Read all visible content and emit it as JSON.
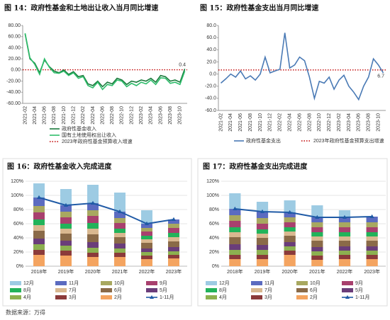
{
  "chart_data": [
    {
      "type": "line",
      "title": "图 14：政府性基金和土地出让收入当月同比增速",
      "categories": [
        "2021-02",
        null,
        "2021-04",
        null,
        "2021-06",
        null,
        "2021-08",
        null,
        "2021-10",
        null,
        "2021-12",
        null,
        "2022-02",
        null,
        "2022-04",
        null,
        "2022-06",
        null,
        "2022-08",
        null,
        "2022-10",
        null,
        "2022-12",
        null,
        "2023-02",
        null,
        "2023-04",
        null,
        "2023-06",
        null,
        "2023-08",
        null,
        "2023-10",
        null
      ],
      "series": [
        {
          "name": "政府性基金收入",
          "color": "#1a7a3c",
          "values": [
            65,
            20,
            12,
            -5,
            18,
            6,
            -2,
            -5,
            0,
            -8,
            -3,
            -12,
            -10,
            -25,
            -28,
            -20,
            -30,
            -22,
            -25,
            -15,
            -18,
            -26,
            -20,
            -22,
            -18,
            -20,
            -15,
            -22,
            -10,
            -12,
            -20,
            -18,
            -22,
            2
          ]
        },
        {
          "name": "国有土地使用权出让收入",
          "color": "#2ebd6b",
          "values": [
            66,
            22,
            10,
            -8,
            20,
            5,
            -5,
            -6,
            -2,
            -10,
            -5,
            -15,
            -12,
            -28,
            -32,
            -22,
            -35,
            -26,
            -28,
            -18,
            -20,
            -30,
            -24,
            -28,
            -22,
            -25,
            -18,
            -26,
            -14,
            -15,
            -24,
            -22,
            -26,
            -2
          ]
        }
      ],
      "reference": {
        "name": "2023年政府性基金预算收入增速",
        "color": "#c00000",
        "value": 0.4
      },
      "ylim": [
        -60,
        80
      ],
      "yticks": [
        {
          "value": -60,
          "label": "-60.00"
        },
        {
          "value": -40,
          "label": "-40.00"
        },
        {
          "value": -20,
          "label": "-20.00"
        },
        {
          "value": 0,
          "label": "0.00"
        },
        {
          "value": 20,
          "label": "20.00"
        },
        {
          "value": 40,
          "label": "40.00"
        },
        {
          "value": 60,
          "label": "60.00"
        },
        {
          "value": 80,
          "label": "80.00"
        }
      ]
    },
    {
      "type": "line",
      "title": "图 15：政府性基金支出当月同比增速",
      "categories": [
        "2021-02",
        null,
        "2021-04",
        null,
        "2021-06",
        null,
        "2021-08",
        null,
        "2021-10",
        null,
        "2021-12",
        null,
        "2022-02",
        null,
        "2022-04",
        null,
        "2022-06",
        null,
        "2022-08",
        null,
        "2022-10",
        null,
        "2022-12",
        null,
        "2023-02",
        null,
        "2023-04",
        null,
        "2023-06",
        null,
        "2023-08",
        null,
        "2023-10",
        null
      ],
      "series": [
        {
          "name": "政府性基金支出",
          "color": "#4a7ab5",
          "values": [
            -15,
            -8,
            0,
            -5,
            5,
            -8,
            -3,
            -10,
            0,
            28,
            2,
            5,
            8,
            68,
            10,
            15,
            28,
            22,
            -5,
            -40,
            -12,
            -15,
            -5,
            -25,
            -10,
            -2,
            -20,
            -30,
            -42,
            -20,
            -5,
            25,
            15,
            2
          ]
        }
      ],
      "reference": {
        "name": "2023年政府性基金预算支出增速",
        "color": "#c00000",
        "value": 6.7
      },
      "ylim": [
        -60,
        80
      ],
      "yticks": [
        {
          "value": -60,
          "label": "-60.0"
        },
        {
          "value": -40,
          "label": "-40.0"
        },
        {
          "value": -20,
          "label": "-20.0"
        },
        {
          "value": 0,
          "label": "0.0"
        },
        {
          "value": 20,
          "label": "20.0"
        },
        {
          "value": 40,
          "label": "40.0"
        },
        {
          "value": 60,
          "label": "60.0"
        },
        {
          "value": 80,
          "label": "80.0"
        }
      ]
    },
    {
      "type": "stacked-bar",
      "title": "图 16：政府性基金收入完成进度",
      "categories": [
        "2018年",
        "2019年",
        "2020年",
        "2021年",
        "2022年",
        "2023年"
      ],
      "series": [
        {
          "name": "12月",
          "color": "#9dcbe3",
          "values": [
            20,
            23,
            26,
            27,
            19,
            null
          ]
        },
        {
          "name": "11月",
          "color": "#5b6bc0",
          "values": [
            12,
            9,
            10,
            9,
            6,
            6
          ]
        },
        {
          "name": "10月",
          "color": "#a8a860",
          "values": [
            9,
            8,
            8,
            7,
            5,
            6
          ]
        },
        {
          "name": "9月",
          "color": "#a8406e",
          "values": [
            10,
            9,
            10,
            8,
            6,
            7
          ]
        },
        {
          "name": "8月",
          "color": "#22b35a",
          "values": [
            8,
            7,
            8,
            6,
            5,
            6
          ]
        },
        {
          "name": "7月",
          "color": "#d9b890",
          "values": [
            8,
            7,
            8,
            6,
            5,
            6
          ]
        },
        {
          "name": "6月",
          "color": "#8a6a48",
          "values": [
            11,
            10,
            11,
            9,
            8,
            8
          ]
        },
        {
          "name": "5月",
          "color": "#6a3d7a",
          "values": [
            8,
            7,
            8,
            7,
            5,
            6
          ]
        },
        {
          "name": "4月",
          "color": "#8cb050",
          "values": [
            8,
            7,
            7,
            6,
            5,
            5
          ]
        },
        {
          "name": "3月",
          "color": "#8b3a3a",
          "values": [
            7,
            7,
            6,
            6,
            5,
            5
          ]
        },
        {
          "name": "2月",
          "color": "#f4a460",
          "values": [
            16,
            15,
            13,
            13,
            10,
            11
          ]
        },
        {
          "name": "1-11月",
          "color": "#1f5aa6",
          "type": "line",
          "values": [
            97,
            86,
            89,
            77,
            60,
            66
          ]
        }
      ],
      "ylim": [
        0,
        120
      ],
      "yticks": [
        {
          "value": 0,
          "label": "0%"
        },
        {
          "value": 20,
          "label": "20%"
        },
        {
          "value": 40,
          "label": "40%"
        },
        {
          "value": 60,
          "label": "60%"
        },
        {
          "value": 80,
          "label": "80%"
        },
        {
          "value": 100,
          "label": "100%"
        },
        {
          "value": 120,
          "label": "120%"
        }
      ]
    },
    {
      "type": "stacked-bar",
      "title": "图 17：政府性基金支出完成进度",
      "categories": [
        "2018年",
        "2019年",
        "2020年",
        "2021年",
        "2022年",
        "2023年"
      ],
      "series": [
        {
          "name": "12月",
          "color": "#9dcbe3",
          "values": [
            22,
            14,
            17,
            17,
            10,
            null
          ]
        },
        {
          "name": "11月",
          "color": "#5b6bc0",
          "values": [
            9,
            9,
            7,
            7,
            7,
            8
          ]
        },
        {
          "name": "10月",
          "color": "#a8a860",
          "values": [
            8,
            8,
            7,
            7,
            7,
            7
          ]
        },
        {
          "name": "9月",
          "color": "#a8406e",
          "values": [
            9,
            8,
            7,
            7,
            7,
            7
          ]
        },
        {
          "name": "8月",
          "color": "#22b35a",
          "values": [
            7,
            6,
            6,
            6,
            6,
            6
          ]
        },
        {
          "name": "7月",
          "color": "#d9b890",
          "values": [
            7,
            6,
            6,
            6,
            6,
            6
          ]
        },
        {
          "name": "6月",
          "color": "#8a6a48",
          "values": [
            10,
            10,
            9,
            9,
            8,
            8
          ]
        },
        {
          "name": "5月",
          "color": "#6a3d7a",
          "values": [
            8,
            7,
            6,
            6,
            6,
            6
          ]
        },
        {
          "name": "4月",
          "color": "#8cb050",
          "values": [
            7,
            7,
            6,
            6,
            6,
            6
          ]
        },
        {
          "name": "3月",
          "color": "#8b3a3a",
          "values": [
            6,
            6,
            6,
            6,
            6,
            6
          ]
        },
        {
          "name": "2月",
          "color": "#f4a460",
          "values": [
            10,
            10,
            16,
            9,
            10,
            10
          ]
        },
        {
          "name": "1-11月",
          "color": "#1f5aa6",
          "type": "line",
          "values": [
            81,
            77,
            76,
            69,
            69,
            70
          ]
        }
      ],
      "ylim": [
        0,
        120
      ],
      "yticks": [
        {
          "value": 0,
          "label": "0%"
        },
        {
          "value": 20,
          "label": "20%"
        },
        {
          "value": 40,
          "label": "40%"
        },
        {
          "value": 60,
          "label": "60%"
        },
        {
          "value": 80,
          "label": "80%"
        },
        {
          "value": 100,
          "label": "100%"
        },
        {
          "value": 120,
          "label": "120%"
        }
      ]
    }
  ],
  "source": "数据来源：万得"
}
